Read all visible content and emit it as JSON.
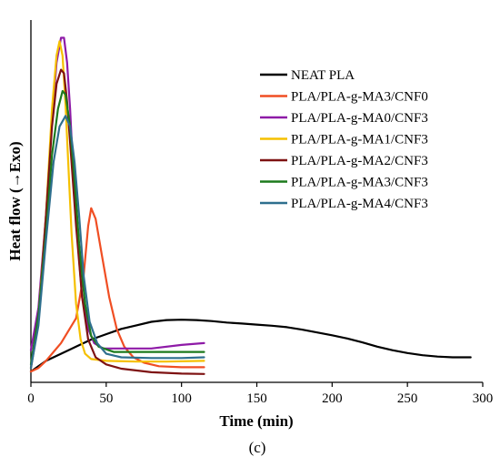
{
  "chart_data": {
    "type": "line",
    "xlabel": "Time (min)",
    "ylabel": "Heat flow (→Exo)",
    "caption": "(c)",
    "xlim": [
      0,
      300
    ],
    "x_ticks": [
      0,
      50,
      100,
      150,
      200,
      250,
      300
    ],
    "ylim": [
      0,
      1
    ],
    "y_ticks_shown": false,
    "grid": false,
    "legend_position": "right",
    "series": [
      {
        "name": "NEAT PLA",
        "color": "#000000",
        "points": [
          [
            0,
            0.01
          ],
          [
            10,
            0.04
          ],
          [
            20,
            0.06
          ],
          [
            30,
            0.08
          ],
          [
            40,
            0.1
          ],
          [
            50,
            0.115
          ],
          [
            60,
            0.13
          ],
          [
            70,
            0.14
          ],
          [
            80,
            0.15
          ],
          [
            90,
            0.155
          ],
          [
            100,
            0.156
          ],
          [
            110,
            0.155
          ],
          [
            120,
            0.152
          ],
          [
            130,
            0.148
          ],
          [
            140,
            0.145
          ],
          [
            150,
            0.142
          ],
          [
            160,
            0.139
          ],
          [
            170,
            0.135
          ],
          [
            180,
            0.128
          ],
          [
            190,
            0.12
          ],
          [
            200,
            0.112
          ],
          [
            210,
            0.103
          ],
          [
            220,
            0.092
          ],
          [
            230,
            0.08
          ],
          [
            240,
            0.07
          ],
          [
            250,
            0.062
          ],
          [
            260,
            0.056
          ],
          [
            270,
            0.052
          ],
          [
            280,
            0.05
          ],
          [
            292,
            0.05
          ]
        ]
      },
      {
        "name": "PLA/PLA-g-MA3/CNF0",
        "color": "#f04e23",
        "points": [
          [
            0,
            0.01
          ],
          [
            5,
            0.02
          ],
          [
            10,
            0.04
          ],
          [
            20,
            0.09
          ],
          [
            30,
            0.16
          ],
          [
            35,
            0.28
          ],
          [
            38,
            0.42
          ],
          [
            40,
            0.47
          ],
          [
            43,
            0.44
          ],
          [
            47,
            0.34
          ],
          [
            52,
            0.22
          ],
          [
            57,
            0.13
          ],
          [
            62,
            0.08
          ],
          [
            68,
            0.05
          ],
          [
            75,
            0.035
          ],
          [
            85,
            0.025
          ],
          [
            100,
            0.022
          ],
          [
            115,
            0.022
          ]
        ]
      },
      {
        "name": "PLA/PLA-g-MA0/CNF3",
        "color": "#8e1aa7",
        "points": [
          [
            0,
            0.07
          ],
          [
            5,
            0.19
          ],
          [
            10,
            0.45
          ],
          [
            14,
            0.72
          ],
          [
            17,
            0.88
          ],
          [
            20,
            0.95
          ],
          [
            22,
            0.95
          ],
          [
            24,
            0.88
          ],
          [
            26,
            0.75
          ],
          [
            28,
            0.58
          ],
          [
            31,
            0.38
          ],
          [
            34,
            0.22
          ],
          [
            38,
            0.13
          ],
          [
            42,
            0.09
          ],
          [
            48,
            0.075
          ],
          [
            60,
            0.075
          ],
          [
            80,
            0.075
          ],
          [
            100,
            0.085
          ],
          [
            115,
            0.09
          ]
        ]
      },
      {
        "name": "PLA/PLA-g-MA1/CNF3",
        "color": "#f5c000",
        "points": [
          [
            0,
            0.02
          ],
          [
            5,
            0.16
          ],
          [
            10,
            0.45
          ],
          [
            14,
            0.75
          ],
          [
            17,
            0.9
          ],
          [
            19,
            0.94
          ],
          [
            21,
            0.9
          ],
          [
            23,
            0.76
          ],
          [
            25,
            0.58
          ],
          [
            27,
            0.4
          ],
          [
            30,
            0.2
          ],
          [
            33,
            0.1
          ],
          [
            36,
            0.06
          ],
          [
            40,
            0.045
          ],
          [
            50,
            0.04
          ],
          [
            70,
            0.038
          ],
          [
            90,
            0.038
          ],
          [
            115,
            0.04
          ]
        ]
      },
      {
        "name": "PLA/PLA-g-MA2/CNF3",
        "color": "#7e1212",
        "points": [
          [
            0,
            0.02
          ],
          [
            5,
            0.15
          ],
          [
            10,
            0.45
          ],
          [
            14,
            0.7
          ],
          [
            17,
            0.82
          ],
          [
            20,
            0.86
          ],
          [
            22,
            0.85
          ],
          [
            24,
            0.77
          ],
          [
            27,
            0.6
          ],
          [
            30,
            0.42
          ],
          [
            34,
            0.22
          ],
          [
            38,
            0.1
          ],
          [
            43,
            0.05
          ],
          [
            50,
            0.03
          ],
          [
            60,
            0.018
          ],
          [
            80,
            0.008
          ],
          [
            100,
            0.004
          ],
          [
            115,
            0.003
          ]
        ]
      },
      {
        "name": "PLA/PLA-g-MA3/CNF3",
        "color": "#1d7a1d",
        "points": [
          [
            0,
            0.03
          ],
          [
            5,
            0.17
          ],
          [
            10,
            0.4
          ],
          [
            14,
            0.62
          ],
          [
            18,
            0.75
          ],
          [
            21,
            0.8
          ],
          [
            23,
            0.79
          ],
          [
            26,
            0.7
          ],
          [
            29,
            0.55
          ],
          [
            32,
            0.37
          ],
          [
            36,
            0.2
          ],
          [
            40,
            0.11
          ],
          [
            45,
            0.08
          ],
          [
            55,
            0.065
          ],
          [
            70,
            0.065
          ],
          [
            90,
            0.065
          ],
          [
            115,
            0.065
          ]
        ]
      },
      {
        "name": "PLA/PLA-g-MA4/CNF3",
        "color": "#2e6f8e",
        "points": [
          [
            0,
            0.02
          ],
          [
            5,
            0.14
          ],
          [
            10,
            0.38
          ],
          [
            15,
            0.6
          ],
          [
            19,
            0.7
          ],
          [
            23,
            0.73
          ],
          [
            26,
            0.7
          ],
          [
            29,
            0.6
          ],
          [
            32,
            0.45
          ],
          [
            35,
            0.28
          ],
          [
            39,
            0.15
          ],
          [
            44,
            0.09
          ],
          [
            50,
            0.06
          ],
          [
            60,
            0.05
          ],
          [
            80,
            0.048
          ],
          [
            100,
            0.048
          ],
          [
            115,
            0.05
          ]
        ]
      }
    ]
  }
}
